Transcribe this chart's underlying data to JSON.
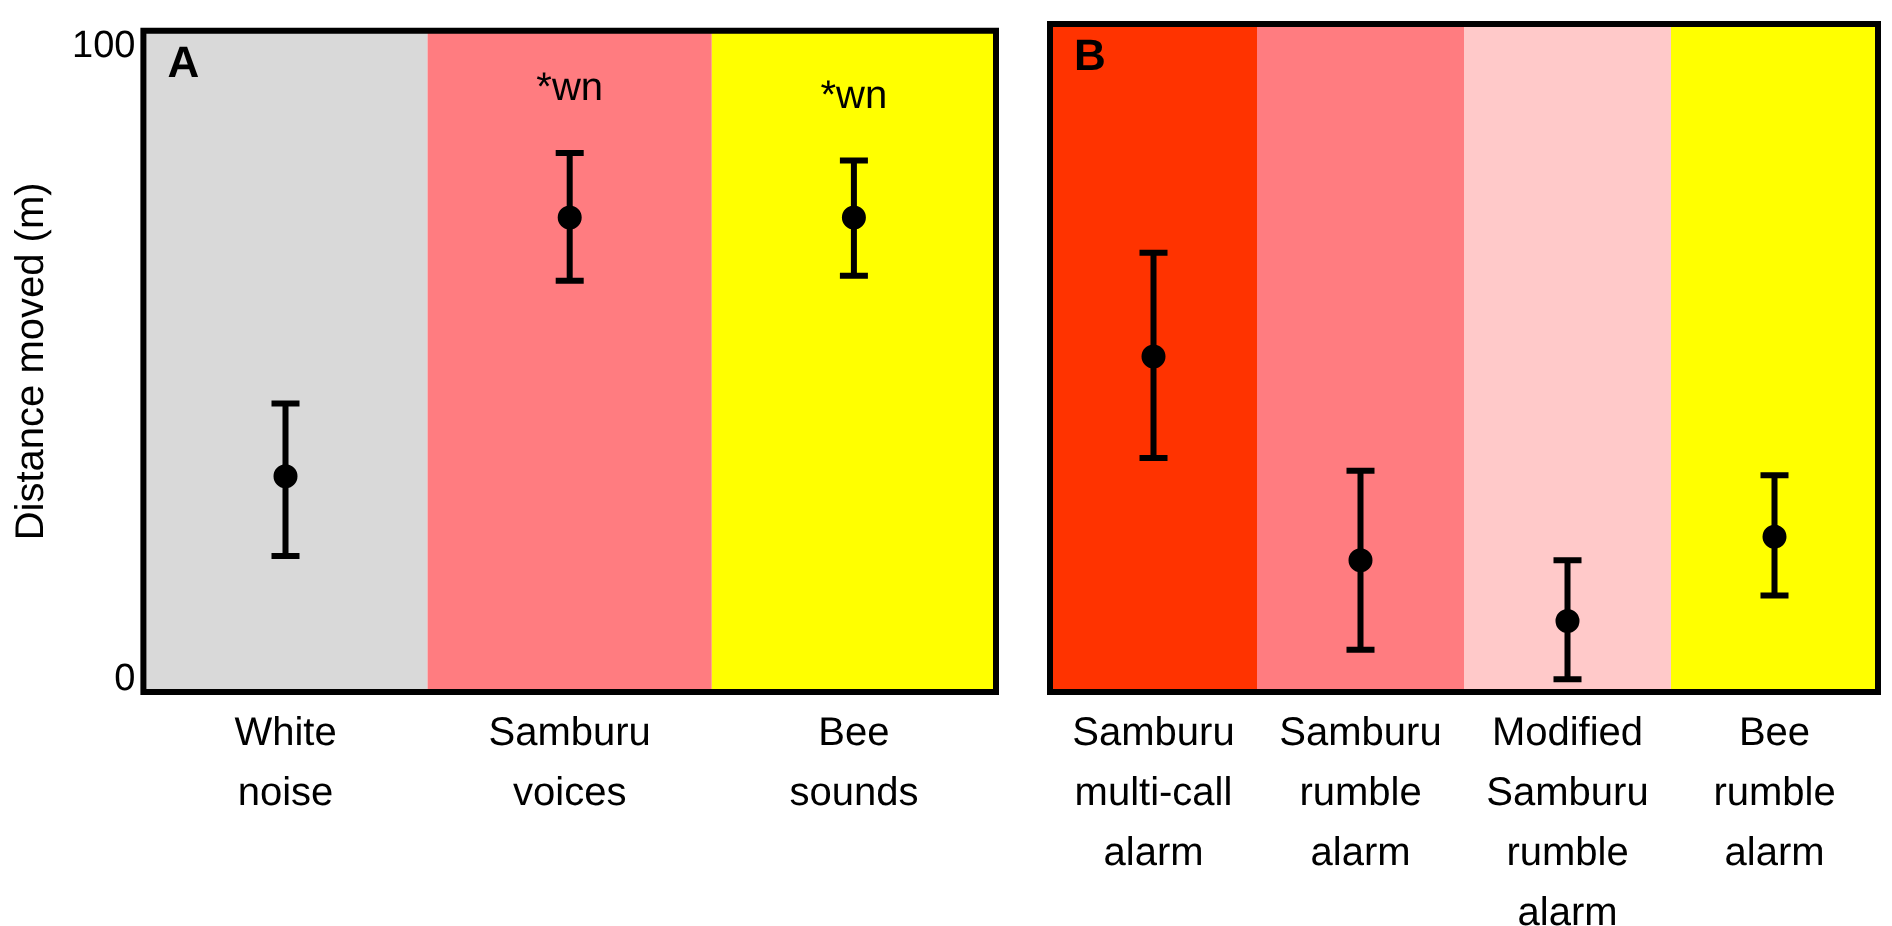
{
  "chart_data": [
    {
      "type": "scatter",
      "title": "A",
      "ylabel": "Distance moved (m)",
      "categories": [
        "White noise",
        "Samburu voices",
        "Bee sounds"
      ],
      "values": [
        32.1,
        73.0,
        73.0
      ],
      "errors": [
        [
          19.5,
          43.6
        ],
        [
          63.0,
          83.2
        ],
        [
          63.8,
          82.0
        ]
      ],
      "color": "#000000",
      "marker": "circle",
      "ylim": [
        -2,
        102.5
      ],
      "yticks": [
        0,
        100
      ],
      "legend": false,
      "bands": [
        {
          "axis": "x",
          "from": "White noise",
          "to": "White noise",
          "color": "#d9d9d9"
        },
        {
          "axis": "x",
          "from": "Samburu voices",
          "to": "Samburu voices",
          "color": "#ff7c80"
        },
        {
          "axis": "x",
          "from": "Bee sounds",
          "to": "Bee sounds",
          "color": "#ffff00"
        }
      ],
      "annotations": [
        {
          "text": "*wn",
          "x": "Samburu voices",
          "y": 83.2
        },
        {
          "text": "*wn",
          "x": "Bee sounds",
          "y": 82.0
        }
      ]
    },
    {
      "type": "scatter",
      "title": "B",
      "categories": [
        "Samburu multi-call alarm",
        "Samburu rumble alarm",
        "Modified Samburu rumble alarm",
        "Bee rumble alarm"
      ],
      "values": [
        50.5,
        18.6,
        9.1,
        22.3
      ],
      "errors": [
        [
          34.6,
          66.7
        ],
        [
          4.6,
          32.6
        ],
        [
          0,
          18.6
        ],
        [
          13.1,
          31.9
        ]
      ],
      "color": "#000000",
      "marker": "circle",
      "ylim": [
        -2,
        102.5
      ],
      "tick_labels": "x",
      "legend": false,
      "bands": [
        {
          "axis": "x",
          "from": "Samburu multi-call alarm",
          "to": "Samburu multi-call alarm",
          "color": "#ff3300"
        },
        {
          "axis": "x",
          "from": "Samburu rumble alarm",
          "to": "Samburu rumble alarm",
          "color": "#ff7c80"
        },
        {
          "axis": "x",
          "from": "Modified Samburu rumble alarm",
          "to": "Modified Samburu rumble alarm",
          "color": "#ffc9c9"
        },
        {
          "axis": "x",
          "from": "Bee rumble alarm",
          "to": "Bee rumble alarm",
          "color": "#ffff00"
        }
      ]
    }
  ]
}
